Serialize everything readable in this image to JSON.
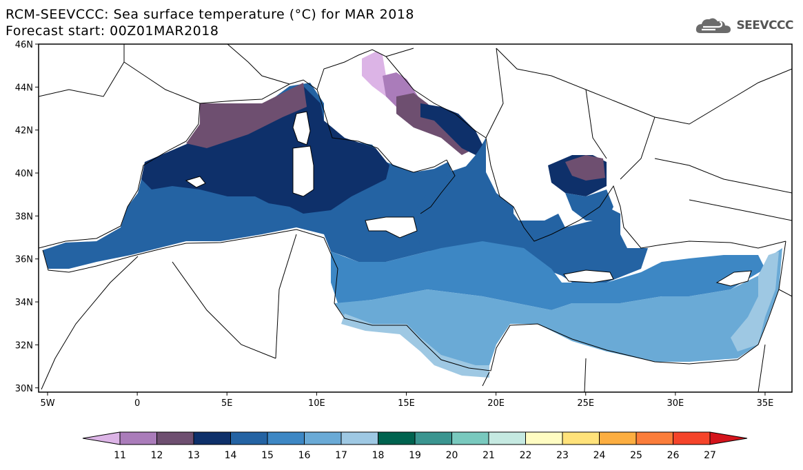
{
  "header": {
    "title": "RCM-SEEVCCC: Sea surface temperature (°C) for MAR 2018",
    "subtitle": "Forecast start: 00Z01MAR2018"
  },
  "logo": {
    "text": "SEEVCCC",
    "icon": "cloud-icon"
  },
  "map": {
    "lon_ticks": [
      {
        "label": "5W",
        "value": -5
      },
      {
        "label": "0",
        "value": 0
      },
      {
        "label": "5E",
        "value": 5
      },
      {
        "label": "10E",
        "value": 10
      },
      {
        "label": "15E",
        "value": 15
      },
      {
        "label": "20E",
        "value": 20
      },
      {
        "label": "25E",
        "value": 25
      },
      {
        "label": "30E",
        "value": 30
      },
      {
        "label": "35E",
        "value": 35
      }
    ],
    "lat_ticks": [
      {
        "label": "46N",
        "value": 46
      },
      {
        "label": "44N",
        "value": 44
      },
      {
        "label": "42N",
        "value": 42
      },
      {
        "label": "40N",
        "value": 40
      },
      {
        "label": "38N",
        "value": 38
      },
      {
        "label": "36N",
        "value": 36
      },
      {
        "label": "34N",
        "value": 34
      },
      {
        "label": "32N",
        "value": 32
      },
      {
        "label": "30N",
        "value": 30
      }
    ],
    "lon_range": [
      -5.5,
      36.5
    ],
    "lat_range": [
      29.8,
      46
    ]
  },
  "colorbar": {
    "labels": [
      "11",
      "12",
      "13",
      "14",
      "15",
      "16",
      "17",
      "18",
      "19",
      "20",
      "21",
      "22",
      "23",
      "24",
      "25",
      "26",
      "27"
    ],
    "colors": [
      "#dcb4e6",
      "#aa7cba",
      "#6e4f70",
      "#0e306a",
      "#2463a3",
      "#3d87c4",
      "#6aaad6",
      "#9ec8e3",
      "#00634f",
      "#3a9590",
      "#79c9be",
      "#c5e9e1",
      "#fffcc2",
      "#ffe27a",
      "#fcae41",
      "#fb7d3a",
      "#f5442a",
      "#d4141c"
    ]
  },
  "legend_colors": {
    "c11": "#dcb4e6",
    "c12": "#aa7cba",
    "c13": "#6e4f70",
    "c14": "#0e306a",
    "c15": "#2463a3",
    "c16": "#3d87c4",
    "c17": "#6aaad6",
    "c18": "#9ec8e3"
  }
}
